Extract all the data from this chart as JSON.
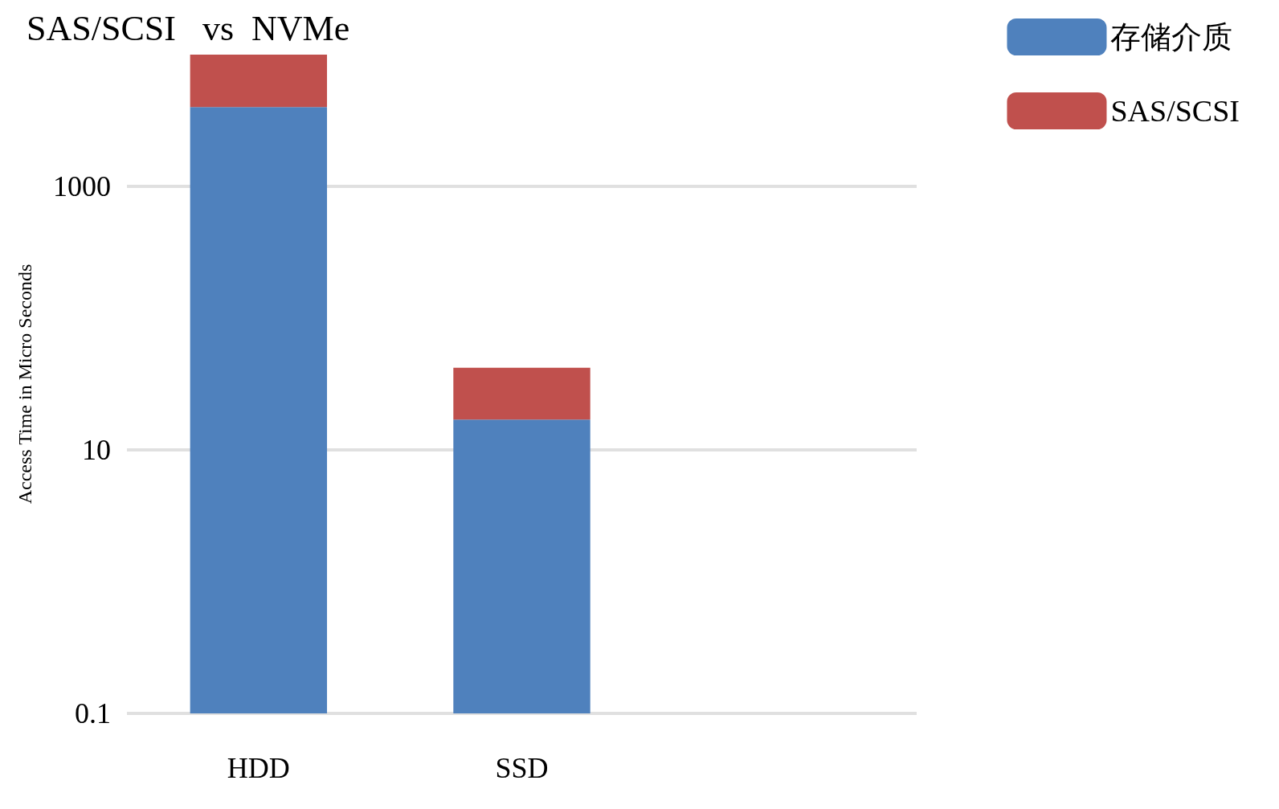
{
  "chart_data": {
    "type": "bar",
    "title": "SAS/SCSI   vs  NVMe",
    "ylabel": "Access Time in Micro Seconds",
    "categories": [
      "HDD",
      "SSD",
      null
    ],
    "stacked": true,
    "log": "y",
    "ylim": [
      0.1,
      10000
    ],
    "yticks": [
      0.1,
      10,
      1000
    ],
    "grid": "y",
    "legend": "top right",
    "series": [
      {
        "name": "存储介质",
        "color": "#4f81bd",
        "values": [
          4000,
          17,
          null
        ]
      },
      {
        "name": "SAS/SCSI",
        "color": "#c0504d",
        "values": [
          6000,
          25,
          null
        ]
      }
    ]
  }
}
